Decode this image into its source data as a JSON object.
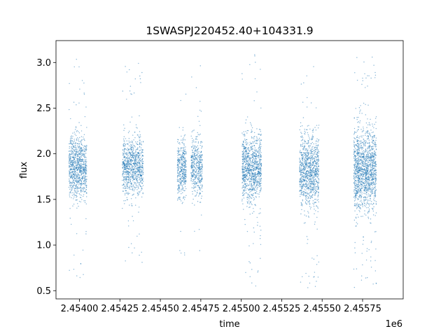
{
  "chart_data": {
    "type": "scatter",
    "title": "1SWASPJ220452.40+104331.9",
    "xlabel": "time",
    "ylabel": "flux",
    "x_offset_label": "1e6",
    "xlim": [
      2453855,
      2456001
    ],
    "ylim": [
      0.41,
      3.24
    ],
    "x_ticks": [
      2.454,
      2.45425,
      2.4545,
      2.45475,
      2.455,
      2.45525,
      2.4555,
      2.45575
    ],
    "x_tick_labels": [
      "2.45400",
      "2.45425",
      "2.45450",
      "2.45475",
      "2.45500",
      "2.45525",
      "2.45550",
      "2.45575"
    ],
    "y_ticks": [
      0.5,
      1.0,
      1.5,
      2.0,
      2.5,
      3.0
    ],
    "y_tick_labels": [
      "0.5",
      "1.0",
      "1.5",
      "2.0",
      "2.5",
      "3.0"
    ],
    "grid": false,
    "marker_color": "#1f77b4",
    "observing_seasons": [
      {
        "x_start": 2453935,
        "x_end": 2454045,
        "y_center": 1.85,
        "y_spread": 0.17,
        "y_min": 0.58,
        "y_max": 3.08,
        "points": 900
      },
      {
        "x_start": 2454265,
        "x_end": 2454395,
        "y_center": 1.85,
        "y_spread": 0.16,
        "y_min": 0.81,
        "y_max": 3.02,
        "points": 900
      },
      {
        "x_start": 2454605,
        "x_end": 2454660,
        "y_center": 1.85,
        "y_spread": 0.15,
        "y_min": 0.87,
        "y_max": 2.9,
        "points": 400
      },
      {
        "x_start": 2454690,
        "x_end": 2454760,
        "y_center": 1.85,
        "y_spread": 0.15,
        "y_min": 0.59,
        "y_max": 3.07,
        "points": 450
      },
      {
        "x_start": 2455005,
        "x_end": 2455125,
        "y_center": 1.85,
        "y_spread": 0.18,
        "y_min": 0.53,
        "y_max": 3.1,
        "points": 1000
      },
      {
        "x_start": 2455360,
        "x_end": 2455480,
        "y_center": 1.82,
        "y_spread": 0.19,
        "y_min": 0.53,
        "y_max": 2.97,
        "points": 1000
      },
      {
        "x_start": 2455695,
        "x_end": 2455835,
        "y_center": 1.82,
        "y_spread": 0.23,
        "y_min": 0.53,
        "y_max": 3.1,
        "points": 1400
      }
    ]
  }
}
